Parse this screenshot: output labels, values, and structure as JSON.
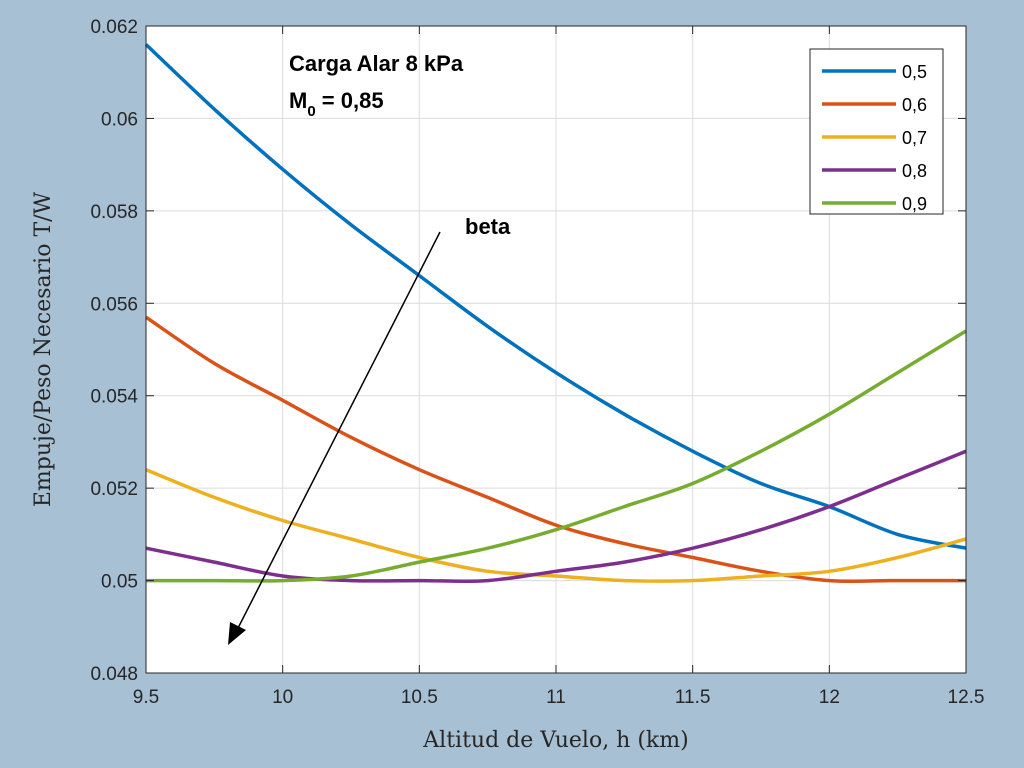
{
  "chart_data": {
    "type": "line",
    "title": "",
    "xlabel": "Altitud de Vuelo, h (km)",
    "ylabel": "Empuje/Peso Necesario T/W",
    "xlim": [
      9.5,
      12.5
    ],
    "ylim": [
      0.048,
      0.062
    ],
    "xticks": [
      9.5,
      10,
      10.5,
      11,
      11.5,
      12,
      12.5
    ],
    "xtick_labels": [
      "9.5",
      "10",
      "10.5",
      "11",
      "11.5",
      "12",
      "12.5"
    ],
    "yticks": [
      0.048,
      0.05,
      0.052,
      0.054,
      0.056,
      0.058,
      0.06,
      0.062
    ],
    "ytick_labels": [
      "0.048",
      "0.05",
      "0.052",
      "0.054",
      "0.056",
      "0.058",
      "0.06",
      "0.062"
    ],
    "grid": true,
    "legend_position": "top-right",
    "x": [
      9.5,
      9.75,
      10.0,
      10.25,
      10.5,
      10.75,
      11.0,
      11.25,
      11.5,
      11.75,
      12.0,
      12.25,
      12.5
    ],
    "series": [
      {
        "name": "0,5",
        "color": "#0072bd",
        "values": [
          0.0616,
          0.0602,
          0.0589,
          0.0577,
          0.0566,
          0.0555,
          0.0545,
          0.0536,
          0.0528,
          0.0521,
          0.0516,
          0.051,
          0.0507
        ]
      },
      {
        "name": "0,6",
        "color": "#d95319",
        "values": [
          0.0557,
          0.0547,
          0.0539,
          0.0531,
          0.0524,
          0.0518,
          0.0512,
          0.0508,
          0.0505,
          0.0502,
          0.05,
          0.05,
          0.05
        ]
      },
      {
        "name": "0,7",
        "color": "#edb120",
        "values": [
          0.0524,
          0.0518,
          0.0513,
          0.0509,
          0.0505,
          0.0502,
          0.0501,
          0.05,
          0.05,
          0.0501,
          0.0502,
          0.0505,
          0.0509
        ]
      },
      {
        "name": "0,8",
        "color": "#7e2f8e",
        "values": [
          0.0507,
          0.0504,
          0.0501,
          0.05,
          0.05,
          0.05,
          0.0502,
          0.0504,
          0.0507,
          0.0511,
          0.0516,
          0.0522,
          0.0528
        ]
      },
      {
        "name": "0,9",
        "color": "#77ac30",
        "values": [
          0.05,
          0.05,
          0.05,
          0.0501,
          0.0504,
          0.0507,
          0.0511,
          0.0516,
          0.0521,
          0.0528,
          0.0536,
          0.0545,
          0.0554
        ]
      }
    ],
    "annotations": {
      "line1": "Carga Alar 8 kPa",
      "line2_main": "M",
      "line2_sub": "0",
      "line2_rest": " = 0,85",
      "arrow_label": "beta"
    }
  }
}
